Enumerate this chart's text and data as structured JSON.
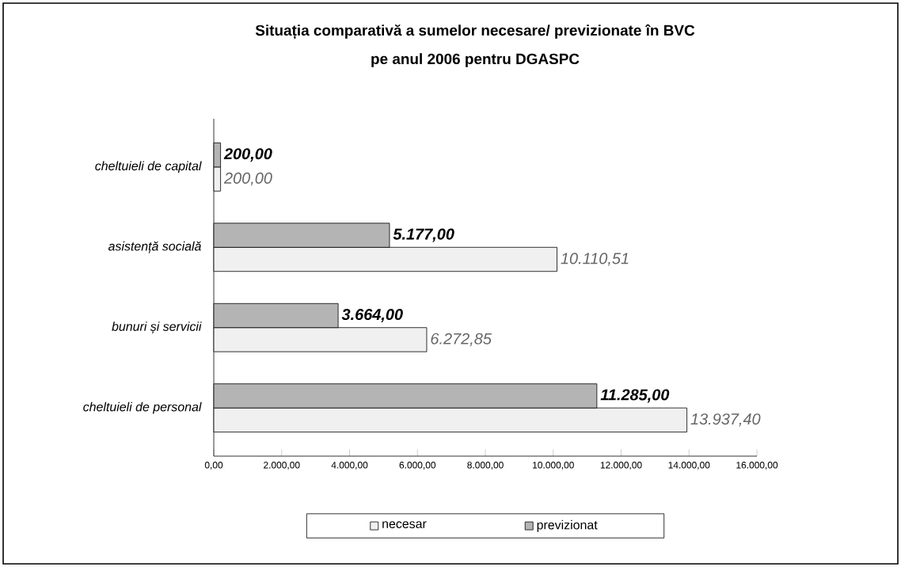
{
  "chart_data": {
    "type": "bar",
    "orientation": "horizontal",
    "title": "Situația comparativă a sumelor necesare/ previzionate în BVC",
    "subtitle": "pe anul 2006 pentru DGASPC",
    "categories": [
      "cheltuieli de capital",
      "asistență socială",
      "bunuri și servicii",
      "cheltuieli de personal"
    ],
    "series": [
      {
        "name": "necesar",
        "color": "#f0f0f0",
        "values": [
          200,
          10110.51,
          6272.85,
          13937.4
        ],
        "value_labels": [
          "200,00",
          "10.110,51",
          "6.272,85",
          "13.937,40"
        ]
      },
      {
        "name": "previzionat",
        "color": "#b4b4b4",
        "values": [
          200,
          5177,
          3664,
          11285
        ],
        "value_labels": [
          "200,00",
          "5.177,00",
          "3.664,00",
          "11.285,00"
        ]
      }
    ],
    "xlim": [
      0,
      16000
    ],
    "xticks": [
      {
        "value": 0,
        "label": "0,00"
      },
      {
        "value": 2000,
        "label": "2.000,00"
      },
      {
        "value": 4000,
        "label": "4.000,00"
      },
      {
        "value": 6000,
        "label": "6.000,00"
      },
      {
        "value": 8000,
        "label": "8.000,00"
      },
      {
        "value": 10000,
        "label": "10.000,00"
      },
      {
        "value": 12000,
        "label": "12.000,00"
      },
      {
        "value": 14000,
        "label": "14.000,00"
      },
      {
        "value": 16000,
        "label": "16.000,00"
      }
    ],
    "grid": false,
    "legend": "bottom"
  }
}
